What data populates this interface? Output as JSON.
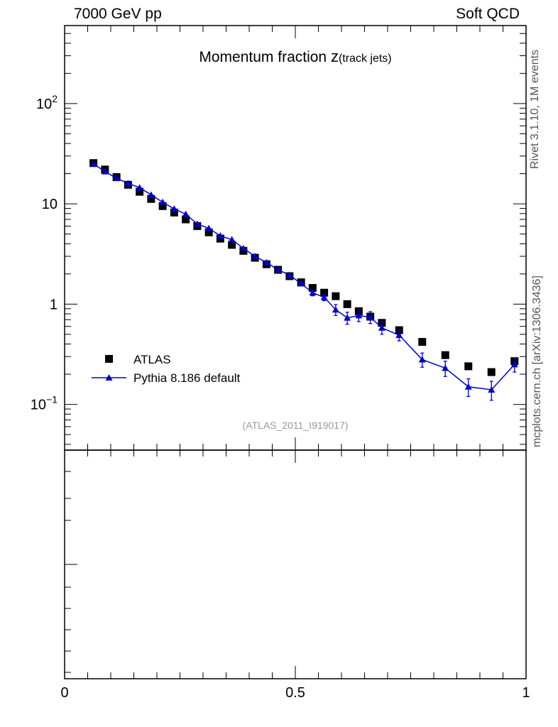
{
  "header": {
    "left": "7000 GeV pp",
    "right": "Soft QCD"
  },
  "side_labels": {
    "rivet": "Rivet 3.1.10,  1M events",
    "mcplots": "mcplots.cern.ch [arXiv:1306.3436]"
  },
  "chart_data": {
    "type": "scatter",
    "title_main": "Momentum fraction ",
    "title_var": "z",
    "title_sub": "(track jets)",
    "watermark": "(ATLAS_2011_I919017)",
    "xlim": [
      0,
      1
    ],
    "ylim": [
      0.035,
      600
    ],
    "log_y": true,
    "y_ticks": [
      {
        "value": 0.1,
        "base": "10",
        "exp": "−1"
      },
      {
        "value": 1,
        "label": "1"
      },
      {
        "value": 10,
        "label": "10"
      },
      {
        "value": 100,
        "base": "10",
        "exp": "2"
      }
    ],
    "x_ticks": [
      {
        "value": 0,
        "label": "0"
      },
      {
        "value": 0.5,
        "label": "0.5"
      },
      {
        "value": 1,
        "label": "1"
      }
    ],
    "legend": {
      "position": "left",
      "entries": [
        "ATLAS",
        "Pythia 8.186 default"
      ]
    },
    "series": [
      {
        "name": "ATLAS",
        "marker": "square",
        "color": "#000000",
        "x": [
          0.0625,
          0.0875,
          0.1125,
          0.1375,
          0.1625,
          0.1875,
          0.2125,
          0.2375,
          0.2625,
          0.2875,
          0.3125,
          0.3375,
          0.3625,
          0.3875,
          0.4125,
          0.4375,
          0.4625,
          0.4875,
          0.5125,
          0.5375,
          0.5625,
          0.5875,
          0.6125,
          0.6375,
          0.6625,
          0.6875,
          0.725,
          0.775,
          0.825,
          0.875,
          0.925,
          0.975
        ],
        "y": [
          25.5,
          22.0,
          18.5,
          15.5,
          13.2,
          11.2,
          9.5,
          8.2,
          7.0,
          6.0,
          5.2,
          4.5,
          3.9,
          3.4,
          2.9,
          2.5,
          2.2,
          1.9,
          1.65,
          1.45,
          1.3,
          1.2,
          1.0,
          0.85,
          0.75,
          0.65,
          0.55,
          0.42,
          0.31,
          0.24,
          0.21,
          0.27
        ]
      },
      {
        "name": "Pythia 8.186 default",
        "marker": "triangle",
        "color": "#0000cc",
        "x": [
          0.0625,
          0.0875,
          0.1125,
          0.1375,
          0.1625,
          0.1875,
          0.2125,
          0.2375,
          0.2625,
          0.2875,
          0.3125,
          0.3375,
          0.3625,
          0.3875,
          0.4125,
          0.4375,
          0.4625,
          0.4875,
          0.5125,
          0.5375,
          0.5625,
          0.5875,
          0.6125,
          0.6375,
          0.6625,
          0.6875,
          0.725,
          0.775,
          0.825,
          0.875,
          0.925,
          0.975
        ],
        "y": [
          25.0,
          21.0,
          18.0,
          16.0,
          14.5,
          12.3,
          10.4,
          8.9,
          7.9,
          6.3,
          5.7,
          4.8,
          4.4,
          3.6,
          3.0,
          2.6,
          2.2,
          1.95,
          1.6,
          1.3,
          1.17,
          0.88,
          0.73,
          0.77,
          0.74,
          0.58,
          0.49,
          0.28,
          0.23,
          0.15,
          0.14,
          0.25
        ],
        "err": [
          0.4,
          0.35,
          0.3,
          0.3,
          0.25,
          0.22,
          0.2,
          0.18,
          0.16,
          0.14,
          0.13,
          0.12,
          0.11,
          0.1,
          0.09,
          0.08,
          0.08,
          0.07,
          0.07,
          0.09,
          0.09,
          0.11,
          0.1,
          0.1,
          0.1,
          0.08,
          0.06,
          0.045,
          0.04,
          0.03,
          0.03,
          0.04
        ]
      }
    ]
  }
}
